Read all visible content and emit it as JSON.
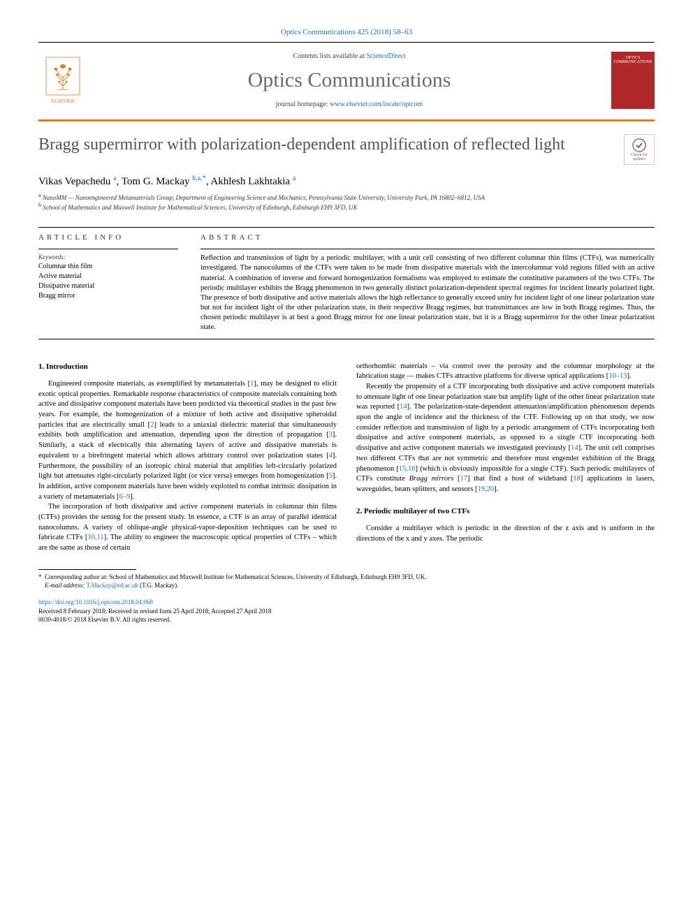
{
  "citation": "Optics Communications 425 (2018) 58–63",
  "masthead": {
    "publisher_name": "ELSEVIER",
    "contents_prefix": "Contents lists available at ",
    "contents_link": "ScienceDirect",
    "journal_name": "Optics Communications",
    "homepage_prefix": "journal homepage: ",
    "homepage_link": "www.elsevier.com/locate/optcom",
    "cover_text": "OPTICS COMMUNICATIONS"
  },
  "colors": {
    "accent_orange": "#e67817",
    "link_blue": "#1a73cc",
    "cover_red": "#b02828",
    "title_grey": "#555555",
    "journal_grey": "#6b6b6b"
  },
  "title": "Bragg supermirror with polarization-dependent amplification of reflected light",
  "check_badge": "Check for updates",
  "authors": [
    {
      "name": "Vikas Vepachedu",
      "affil": "a"
    },
    {
      "name": "Tom G. Mackay",
      "affil": "b,a,*"
    },
    {
      "name": "Akhlesh Lakhtakia",
      "affil": "a"
    }
  ],
  "affiliations": [
    {
      "key": "a",
      "text": "NanoMM — Nanoengineered Metamaterials Group, Department of Engineering Science and Mechanics, Pennsylvania State University, University Park, PA 16802–6812, USA"
    },
    {
      "key": "b",
      "text": "School of Mathematics and Maxwell Institute for Mathematical Sciences, University of Edinburgh, Edinburgh EH9 3FD, UK"
    }
  ],
  "article_info_heading": "ARTICLE INFO",
  "keywords_label": "Keywords:",
  "keywords": [
    "Columnar thin film",
    "Active material",
    "Dissipative material",
    "Bragg mirror"
  ],
  "abstract_heading": "ABSTRACT",
  "abstract": "Reflection and transmission of light by a periodic multilayer, with a unit cell consisting of two different columnar thin films (CTFs), was numerically investigated. The nanocolumns of the CTFs were taken to be made from dissipative materials with the intercolumnar void regions filled with an active material. A combination of inverse and forward homogenization formalisms was employed to estimate the constitutive parameters of the two CTFs. The periodic multilayer exhibits the Bragg phenomenon in two generally distinct polarization-dependent spectral regimes for incident linearly polarized light. The presence of both dissipative and active materials allows the high reflectance to generally exceed unity for incident light of one linear polarization state but not for incident light of the other polarization state, in their respective Bragg regimes, but transmittances are low in both Bragg regimes. Thus, the chosen periodic multilayer is at best a good Bragg mirror for one linear polarization state, but it is a Bragg supermirror for the other linear polarization state.",
  "body": {
    "section1_heading": "1. Introduction",
    "col1_p1": "Engineered composite materials, as exemplified by metamaterials [1], may be designed to elicit exotic optical properties. Remarkable response characteristics of composite materials containing both active and dissipative component materials have been predicted via theoretical studies in the past few years. For example, the homogenization of a mixture of both active and dissipative spheroidal particles that are electrically small [2] leads to a uniaxial dielectric material that simultaneously exhibits both amplification and attenuation, depending upon the direction of propagation [3]. Similarly, a stack of electrically thin alternating layers of active and dissipative materials is equivalent to a birefringent material which allows arbitrary control over polarization states [4]. Furthermore, the possibility of an isotropic chiral material that amplifies left-circularly polarized light but attenuates right-circularly polarized light (or vice versa) emerges from homogenization [5]. In addition, active component materials have been widely exploited to combat intrinsic dissipation in a variety of metamaterials [6–9].",
    "col1_p2": "The incorporation of both dissipative and active component materials in columnar thin films (CTFs) provides the setting for the present study. In essence, a CTF is an array of parallel identical nanocolumns. A variety of oblique-angle physical-vapor-deposition techniques can be used to fabricate CTFs [10,11]. The ability to engineer the macroscopic optical properties of CTFs – which are the same as those of certain",
    "col2_p1": "orthorhombic materials – via control over the porosity and the columnar morphology at the fabrication stage — makes CTFs attractive platforms for diverse optical applications [10–13].",
    "col2_p2": "Recently the propensity of a CTF incorporating both dissipative and active component materials to attenuate light of one linear polarization state but amplify light of the other linear polarization state was reported [14]. The polarization-state-dependent attenuation/amplification phenomenon depends upon the angle of incidence and the thickness of the CTF. Following up on that study, we now consider reflection and transmission of light by a periodic arrangement of CTFs incorporating both dissipative and active component materials, as opposed to a single CTF incorporating both dissipative and active component materials we investigated previously [14]. The unit cell comprises two different CTFs that are not symmetric and therefore must engender exhibition of the Bragg phenomenon [15,16] (which is obviously impossible for a single CTF). Such periodic multilayers of CTFs constitute Bragg mirrors [17] that find a host of wideband [18] applications in lasers, waveguides, beam splitters, and sensors [19,20].",
    "section2_heading": "2. Periodic multilayer of two CTFs",
    "col2_p3": "Consider a multilayer which is periodic in the direction of the z axis and is uniform in the directions of the x and y axes. The periodic"
  },
  "footnote": {
    "marker": "*",
    "text": "Corresponding author at: School of Mathematics and Maxwell Institute for Mathematical Sciences, University of Edinburgh, Edinburgh EH9 3FD, UK.",
    "email_label": "E-mail address:",
    "email": "T.Mackay@ed.ac.uk",
    "email_author": "(T.G. Mackay)."
  },
  "footer": {
    "doi": "https://doi.org/10.1016/j.optcom.2018.04.068",
    "history": "Received 8 February 2018; Received in revised form 25 April 2018; Accepted 27 April 2018",
    "copyright": "0030-4018/© 2018 Elsevier B.V. All rights reserved."
  }
}
